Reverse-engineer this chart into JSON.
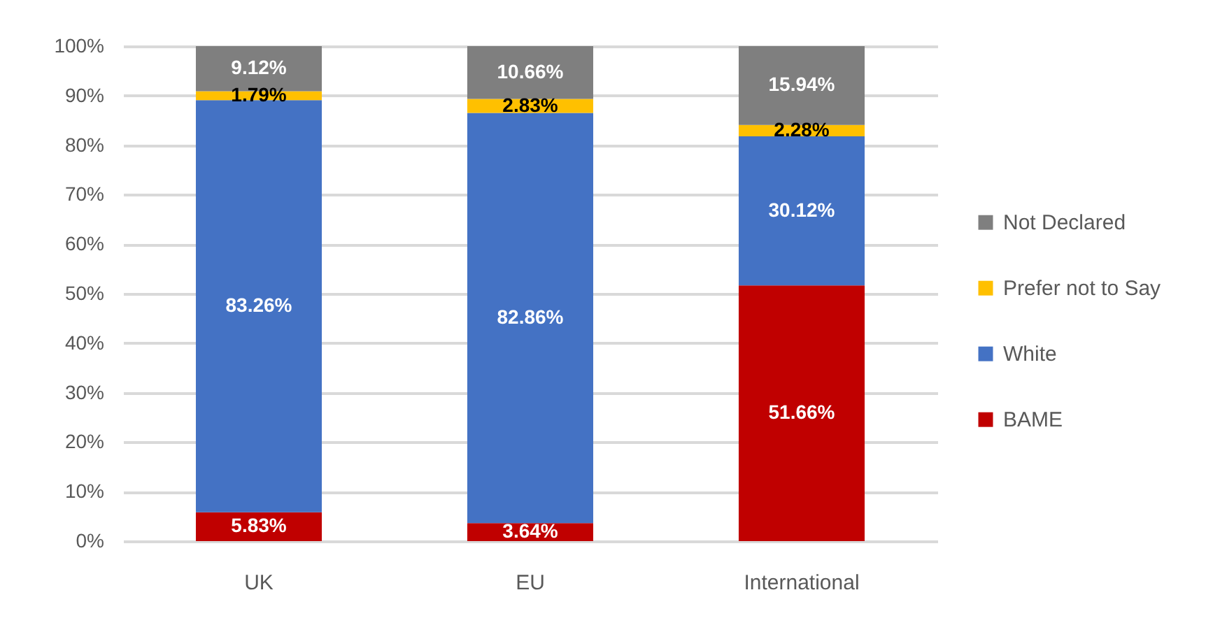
{
  "chart_data": {
    "type": "bar",
    "stacked": true,
    "categories": [
      "UK",
      "EU",
      "International"
    ],
    "series": [
      {
        "name": "BAME",
        "color": "#c00000",
        "values": [
          5.83,
          3.64,
          51.66
        ],
        "value_labels": [
          "5.83%",
          "3.64%",
          "51.66%"
        ]
      },
      {
        "name": "White",
        "color": "#4472c4",
        "values": [
          83.26,
          82.86,
          30.12
        ],
        "value_labels": [
          "83.26%",
          "82.86%",
          "30.12%"
        ]
      },
      {
        "name": "Prefer not to Say",
        "color": "#ffc000",
        "values": [
          1.79,
          2.83,
          2.28
        ],
        "value_labels": [
          "1.79%",
          "2.83%",
          "2.28%"
        ]
      },
      {
        "name": "Not Declared",
        "color": "#7f7f7f",
        "values": [
          9.12,
          10.66,
          15.94
        ],
        "value_labels": [
          "9.12%",
          "10.66%",
          "15.94%"
        ]
      }
    ],
    "ylim": [
      0,
      100
    ],
    "yticks": [
      {
        "value": 0,
        "label": "0%"
      },
      {
        "value": 10,
        "label": "10%"
      },
      {
        "value": 20,
        "label": "20%"
      },
      {
        "value": 30,
        "label": "30%"
      },
      {
        "value": 40,
        "label": "40%"
      },
      {
        "value": 50,
        "label": "50%"
      },
      {
        "value": 60,
        "label": "60%"
      },
      {
        "value": 70,
        "label": "70%"
      },
      {
        "value": 80,
        "label": "80%"
      },
      {
        "value": 90,
        "label": "90%"
      },
      {
        "value": 100,
        "label": "100%"
      }
    ],
    "grid": "y",
    "legend": "right"
  }
}
